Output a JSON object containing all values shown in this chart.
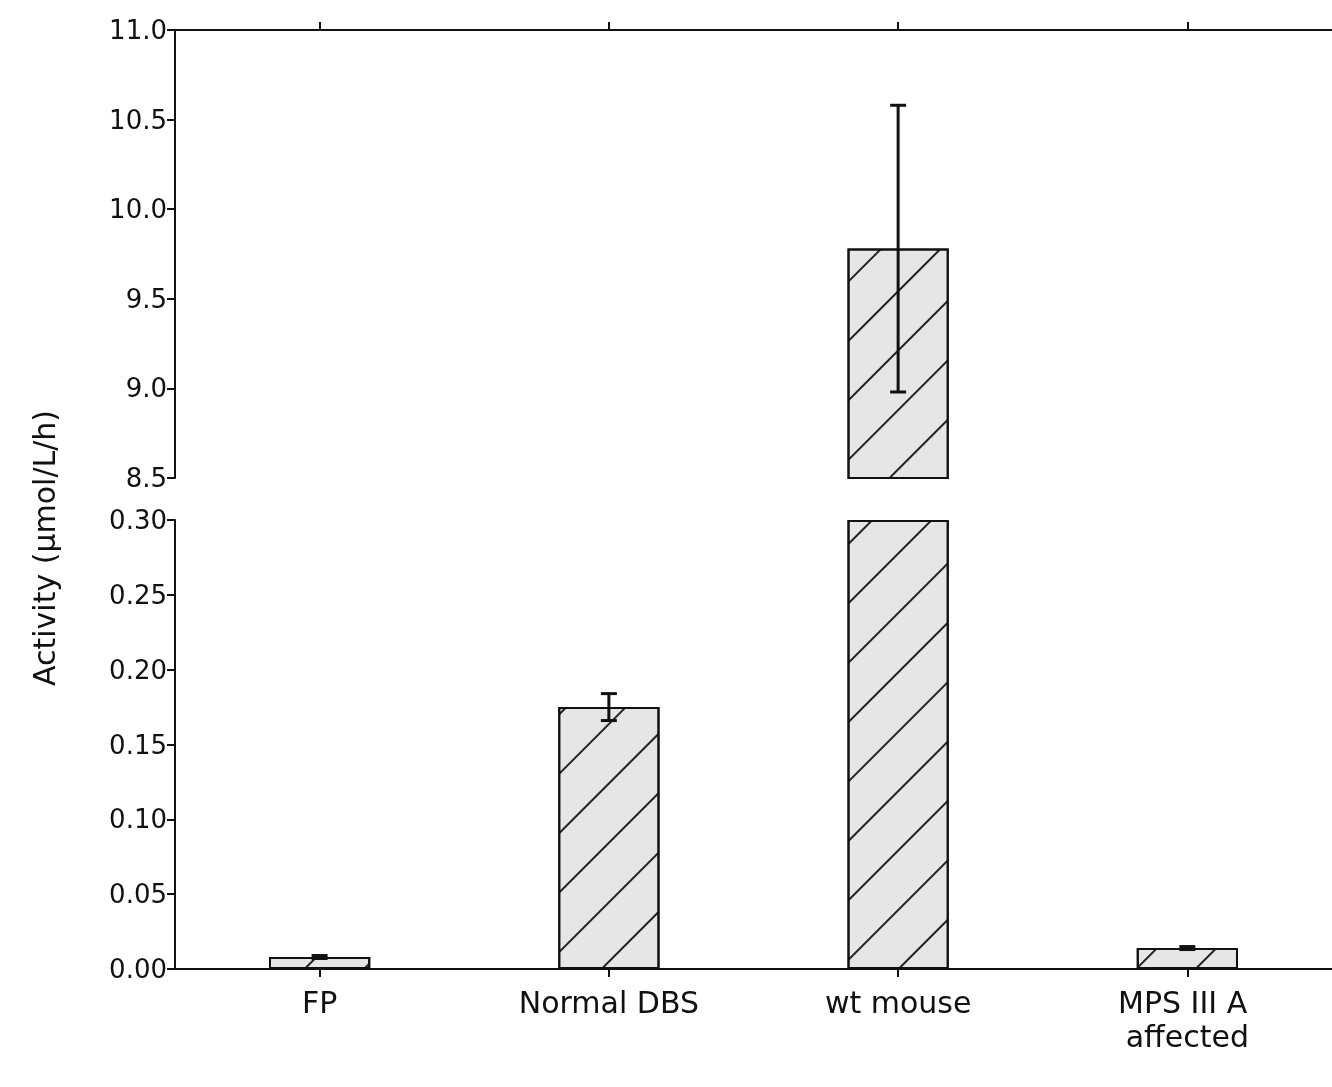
{
  "chart_data": [
    {
      "type": "bar",
      "ylabel": "Activity (µmol/L/h)",
      "categories": [
        "FP",
        "Normal DBS",
        "wt mouse",
        "MPS III A affected"
      ],
      "series": [
        {
          "color": "#e6e6e6",
          "values": [
            null,
            null,
            9.78,
            null
          ],
          "errors": [
            null,
            null,
            0.8,
            null
          ]
        }
      ],
      "ylim": [
        8.5,
        11.0
      ],
      "yticks": [
        8.5,
        {
          "value": 9.0,
          "label": "9.0"
        },
        9.5,
        {
          "value": 10.0,
          "label": "10.0"
        },
        10.5,
        {
          "value": 11.0,
          "label": "11.0"
        }
      ],
      "tick_labels": "y",
      "grid": false
    },
    {
      "type": "bar",
      "categories": [
        "FP",
        "Normal DBS",
        "wt mouse",
        "MPS III A affected"
      ],
      "series": [
        {
          "color": "#e6e6e6",
          "values": [
            0.008,
            0.175,
            0.3,
            0.014
          ],
          "errors": [
            0.001,
            0.009,
            null,
            0.001
          ]
        }
      ],
      "ylim": [
        0,
        0.3
      ],
      "yticks": [
        {
          "value": 0,
          "label": "0.00"
        },
        {
          "value": 0.05,
          "label": "0.05"
        },
        {
          "value": 0.1,
          "label": "0.10"
        },
        {
          "value": 0.15,
          "label": "0.15"
        },
        {
          "value": 0.2,
          "label": "0.20"
        },
        {
          "value": 0.25,
          "label": "0.25"
        },
        {
          "value": 0.3,
          "label": "0.30"
        }
      ],
      "grid": false
    }
  ]
}
